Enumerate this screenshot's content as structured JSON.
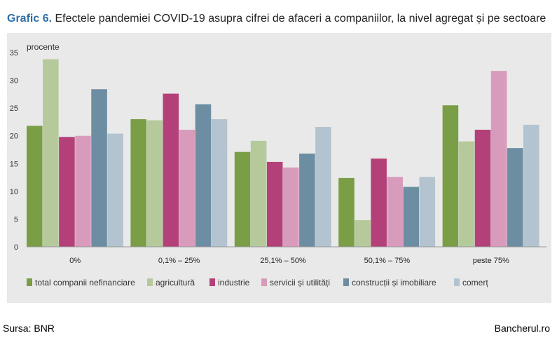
{
  "title": {
    "label": "Grafic 6.",
    "text": "Efectele pandemiei COVID-19 asupra cifrei de afaceri a companiilor, la nivel agregat și pe sectoare"
  },
  "chart_data": {
    "type": "bar",
    "ylabel": "procente",
    "ylim": [
      0,
      35
    ],
    "yticks": [
      0,
      5,
      10,
      15,
      20,
      25,
      30,
      35
    ],
    "grid": false,
    "legend_position": "bottom",
    "categories": [
      "0%",
      "0,1% – 25%",
      "25,1% – 50%",
      "50,1% – 75%",
      "peste 75%"
    ],
    "series": [
      {
        "name": "total companii nefinanciare",
        "color": "#7a9e46",
        "values": [
          21.8,
          23.0,
          17.1,
          12.4,
          25.5
        ]
      },
      {
        "name": "agricultură",
        "color": "#b6c99a",
        "values": [
          33.8,
          22.8,
          19.1,
          4.8,
          19.0
        ]
      },
      {
        "name": "industrie",
        "color": "#b4407a",
        "values": [
          19.8,
          27.6,
          15.3,
          15.9,
          21.1
        ]
      },
      {
        "name": "servicii și utilități",
        "color": "#d99bbb",
        "values": [
          20.0,
          21.1,
          14.3,
          12.6,
          31.7
        ]
      },
      {
        "name": "construcții și imobiliare",
        "color": "#6d8ea2",
        "values": [
          28.4,
          25.7,
          16.8,
          10.8,
          17.8
        ]
      },
      {
        "name": "comerț",
        "color": "#b3c3d0",
        "values": [
          20.4,
          23.0,
          21.6,
          12.6,
          22.0
        ]
      }
    ]
  },
  "footer": {
    "source": "Sursa: BNR",
    "site": "Bancherul.ro"
  }
}
